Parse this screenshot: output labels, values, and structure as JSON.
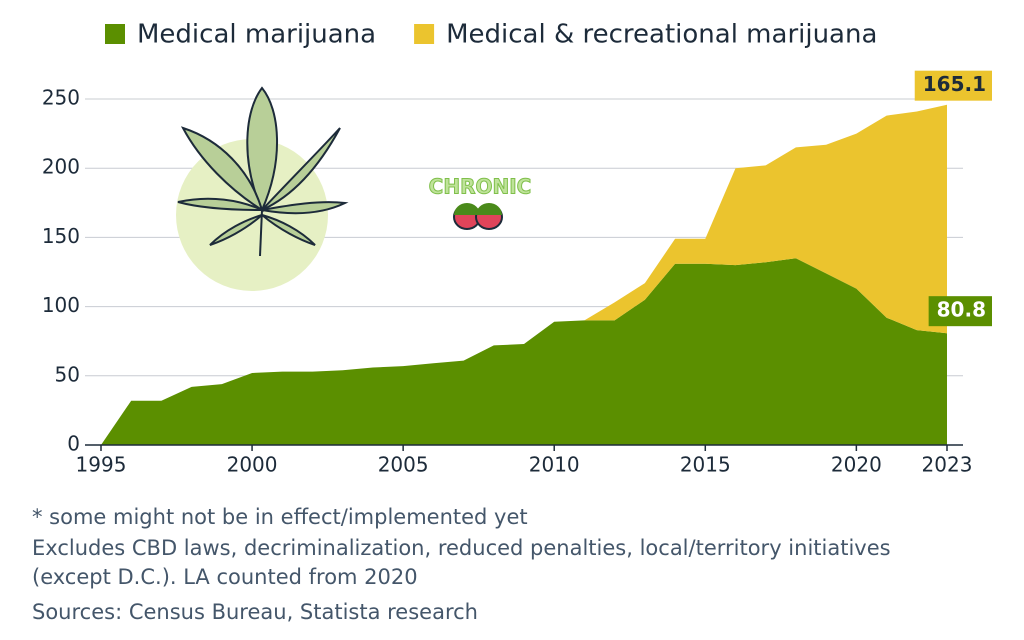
{
  "chart_data": {
    "type": "stacked-area",
    "x": [
      1995,
      1996,
      1997,
      1998,
      1999,
      2000,
      2001,
      2002,
      2003,
      2004,
      2005,
      2006,
      2007,
      2008,
      2009,
      2010,
      2011,
      2012,
      2013,
      2014,
      2015,
      2016,
      2017,
      2018,
      2019,
      2020,
      2021,
      2022,
      2023
    ],
    "series": [
      {
        "name": "Medical marijuana",
        "color": "#5b8f00",
        "values": [
          0,
          32,
          32,
          42,
          44,
          52,
          53,
          53,
          54,
          56,
          57,
          59,
          61,
          72,
          73,
          89,
          90,
          90,
          105,
          131,
          131,
          130,
          132,
          135,
          124,
          113,
          92,
          83,
          80.8
        ]
      },
      {
        "name": "Medical & recreational marijuana",
        "color": "#ebc42e",
        "values": [
          0,
          0,
          0,
          0,
          0,
          0,
          0,
          0,
          0,
          0,
          0,
          0,
          0,
          0,
          0,
          0,
          0,
          13,
          12,
          18,
          18,
          70,
          70,
          80,
          93,
          112,
          146,
          158,
          165.1
        ]
      }
    ],
    "xlim": [
      1995,
      2023
    ],
    "xticks": [
      1995,
      2000,
      2005,
      2010,
      2015,
      2020,
      2023
    ],
    "ylim": [
      0,
      250
    ],
    "yticks": [
      0,
      50,
      100,
      150,
      200,
      250
    ],
    "grid": true,
    "legend": "top",
    "logo": "CHRONIC",
    "notes": [
      "* some might not be in effect/implemented yet",
      "Excludes CBD laws, decriminalization, reduced penalties, local/territory initiatives",
      "(except D.C.). LA counted from 2020",
      "Sources: Census Bureau, Statista research"
    ]
  }
}
